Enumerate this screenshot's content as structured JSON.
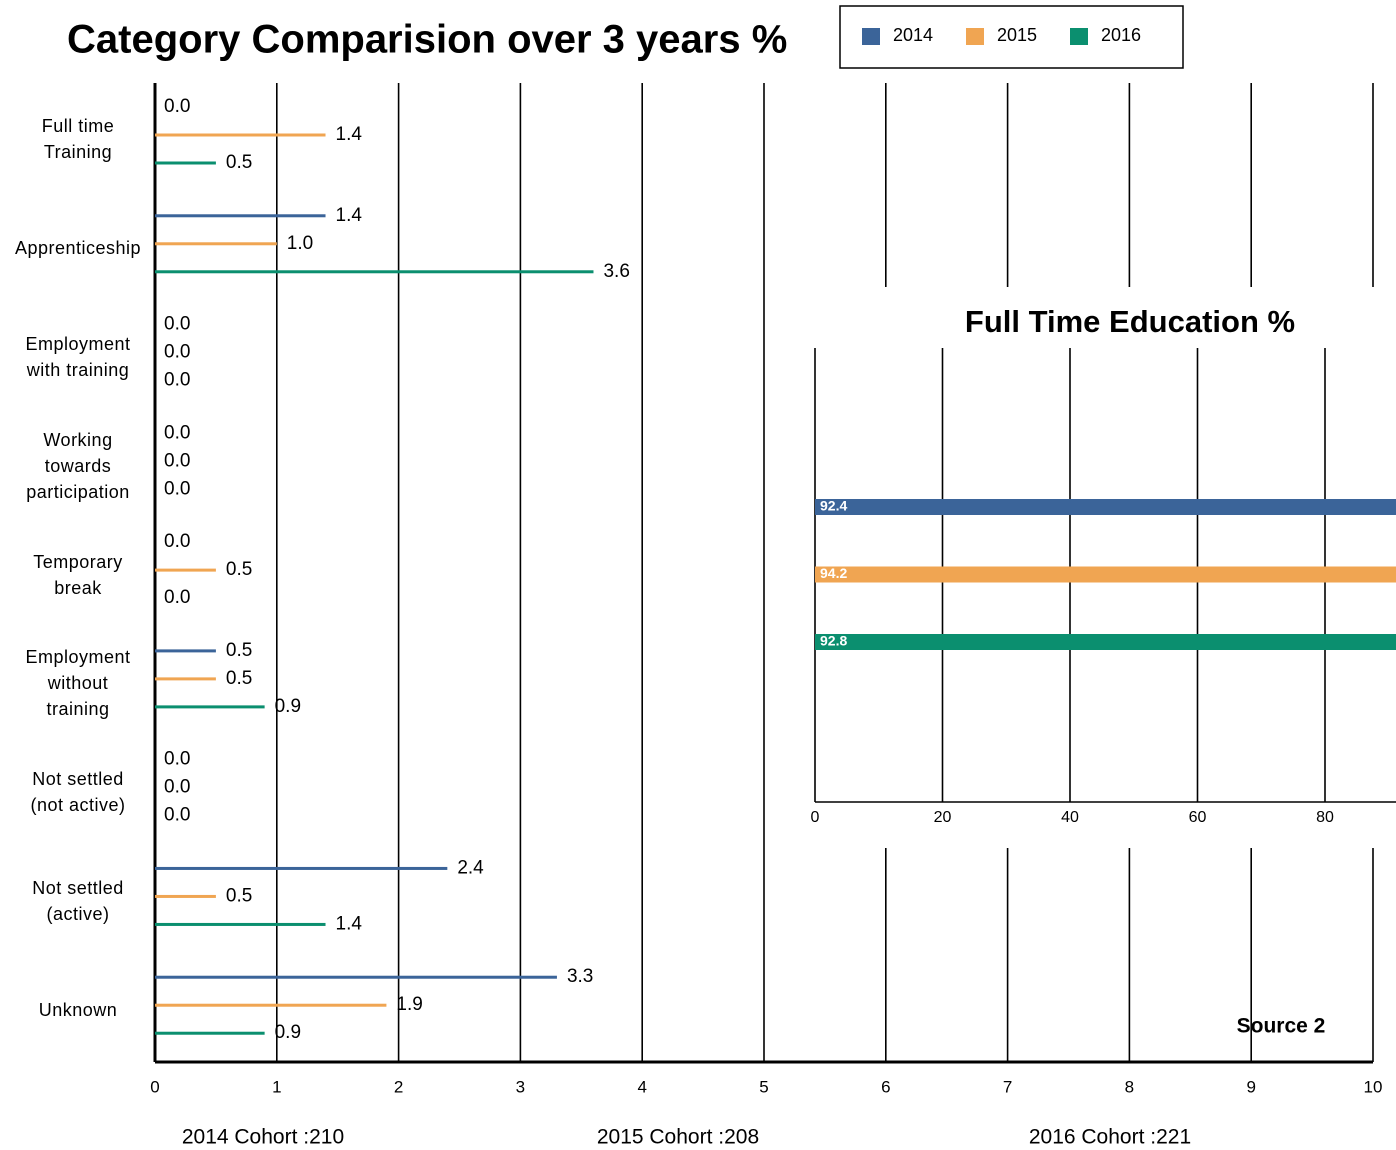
{
  "chart_data": [
    {
      "type": "bar",
      "orientation": "horizontal",
      "title": "Category Comparision over 3 years %",
      "categories": [
        "Full time\nTraining",
        "Apprenticeship",
        "Employment\nwith training",
        "Working\ntowards\nparticipation",
        "Temporary\nbreak",
        "Employment\nwithout\ntraining",
        "Not settled\n(not active)",
        "Not settled\n(active)",
        "Unknown"
      ],
      "series": [
        {
          "name": "2014",
          "color": "#3b6499",
          "values": [
            0,
            1.4,
            0,
            0,
            0,
            0.5,
            0,
            2.4,
            3.3
          ],
          "value_labels": [
            "0.0",
            "1.4",
            "0.0",
            "0.0",
            "0.0",
            "0.5",
            "0.0",
            "2.4",
            "3.3"
          ]
        },
        {
          "name": "2015",
          "color": "#f0a552",
          "values": [
            1.4,
            1.0,
            0,
            0,
            0.5,
            0.5,
            0,
            0.5,
            1.9
          ],
          "value_labels": [
            "1.4",
            "1.0",
            "0.0",
            "0.0",
            "0.5",
            "0.5",
            "0.0",
            "0.5",
            "1.9"
          ]
        },
        {
          "name": "2016",
          "color": "#0b8f6f",
          "values": [
            0.5,
            3.6,
            0,
            0,
            0,
            0.9,
            0,
            1.4,
            0.9
          ],
          "value_labels": [
            "0.5",
            "3.6",
            "0.0",
            "0.0",
            "0.0",
            "0.9",
            "0.0",
            "1.4",
            "0.9"
          ]
        }
      ],
      "xlim": [
        0,
        10
      ],
      "xticks": [
        0,
        1,
        2,
        3,
        4,
        5,
        6,
        7,
        8,
        9,
        10
      ],
      "grid": true,
      "legend": "top"
    },
    {
      "type": "bar",
      "orientation": "horizontal",
      "title": "Full Time Education %",
      "values": [
        92.4,
        94.2,
        92.8
      ],
      "colors": [
        "#3b6499",
        "#f0a552",
        "#0b8f6f"
      ],
      "xlim": [
        0,
        100
      ],
      "xticks": [
        0,
        20,
        40,
        60,
        80
      ],
      "grid": true
    }
  ],
  "cohorts": [
    "2014 Cohort :210",
    "2015 Cohort :208",
    "2016 Cohort :221"
  ],
  "source": "Source 2"
}
